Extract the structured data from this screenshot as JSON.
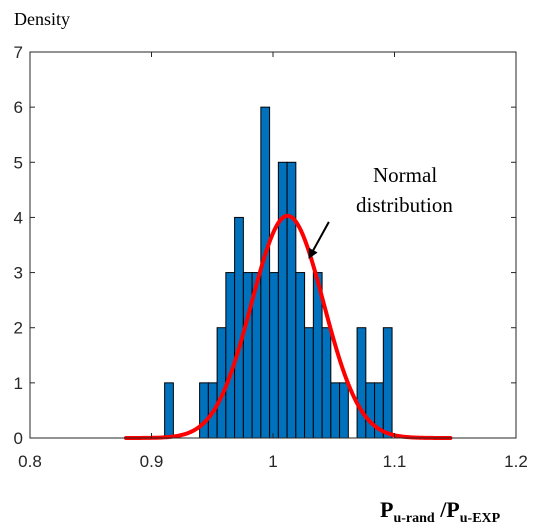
{
  "chart_data": {
    "type": "bar",
    "title": "",
    "ylabel": "Density",
    "xlabel": {
      "parts": [
        {
          "text": "P",
          "role": "main"
        },
        {
          "text": "u-rand",
          "role": "sub"
        },
        {
          "text": " /P",
          "role": "main"
        },
        {
          "text": "u-EXP",
          "role": "sub"
        }
      ]
    },
    "xlim": [
      0.8,
      1.2
    ],
    "ylim": [
      0,
      7
    ],
    "xticks": [
      "0.8",
      "0.9",
      "1",
      "1.1",
      "1.2"
    ],
    "yticks": [
      "0",
      "1",
      "2",
      "3",
      "4",
      "5",
      "6",
      "7"
    ],
    "grid": false,
    "bar_color": "#0072BD",
    "bin_width": 0.0072,
    "bins": [
      {
        "x": 0.9108,
        "value": 1
      },
      {
        "x": 0.9396,
        "value": 1
      },
      {
        "x": 0.9468,
        "value": 1
      },
      {
        "x": 0.954,
        "value": 2
      },
      {
        "x": 0.9612,
        "value": 3
      },
      {
        "x": 0.9684,
        "value": 4
      },
      {
        "x": 0.9756,
        "value": 3
      },
      {
        "x": 0.9828,
        "value": 3
      },
      {
        "x": 0.99,
        "value": 6
      },
      {
        "x": 0.9972,
        "value": 3
      },
      {
        "x": 1.0044,
        "value": 5
      },
      {
        "x": 1.0116,
        "value": 5
      },
      {
        "x": 1.0188,
        "value": 3
      },
      {
        "x": 1.026,
        "value": 2
      },
      {
        "x": 1.0332,
        "value": 3
      },
      {
        "x": 1.0404,
        "value": 2
      },
      {
        "x": 1.0476,
        "value": 1
      },
      {
        "x": 1.0548,
        "value": 1
      },
      {
        "x": 1.0692,
        "value": 2
      },
      {
        "x": 1.0764,
        "value": 1
      },
      {
        "x": 1.0836,
        "value": 1
      },
      {
        "x": 1.0908,
        "value": 2
      }
    ],
    "curve": {
      "type": "normal",
      "color": "#FF0000",
      "mean": 1.012,
      "sd": 0.0297,
      "peak": 4.03,
      "x_range": [
        0.879,
        1.146
      ]
    },
    "annotation": {
      "lines": [
        "Normal",
        "distribution"
      ],
      "arrow_tip": {
        "x": 1.03,
        "y": 3.28
      },
      "arrow_tail": {
        "x": 1.046,
        "y": 3.92
      }
    }
  }
}
